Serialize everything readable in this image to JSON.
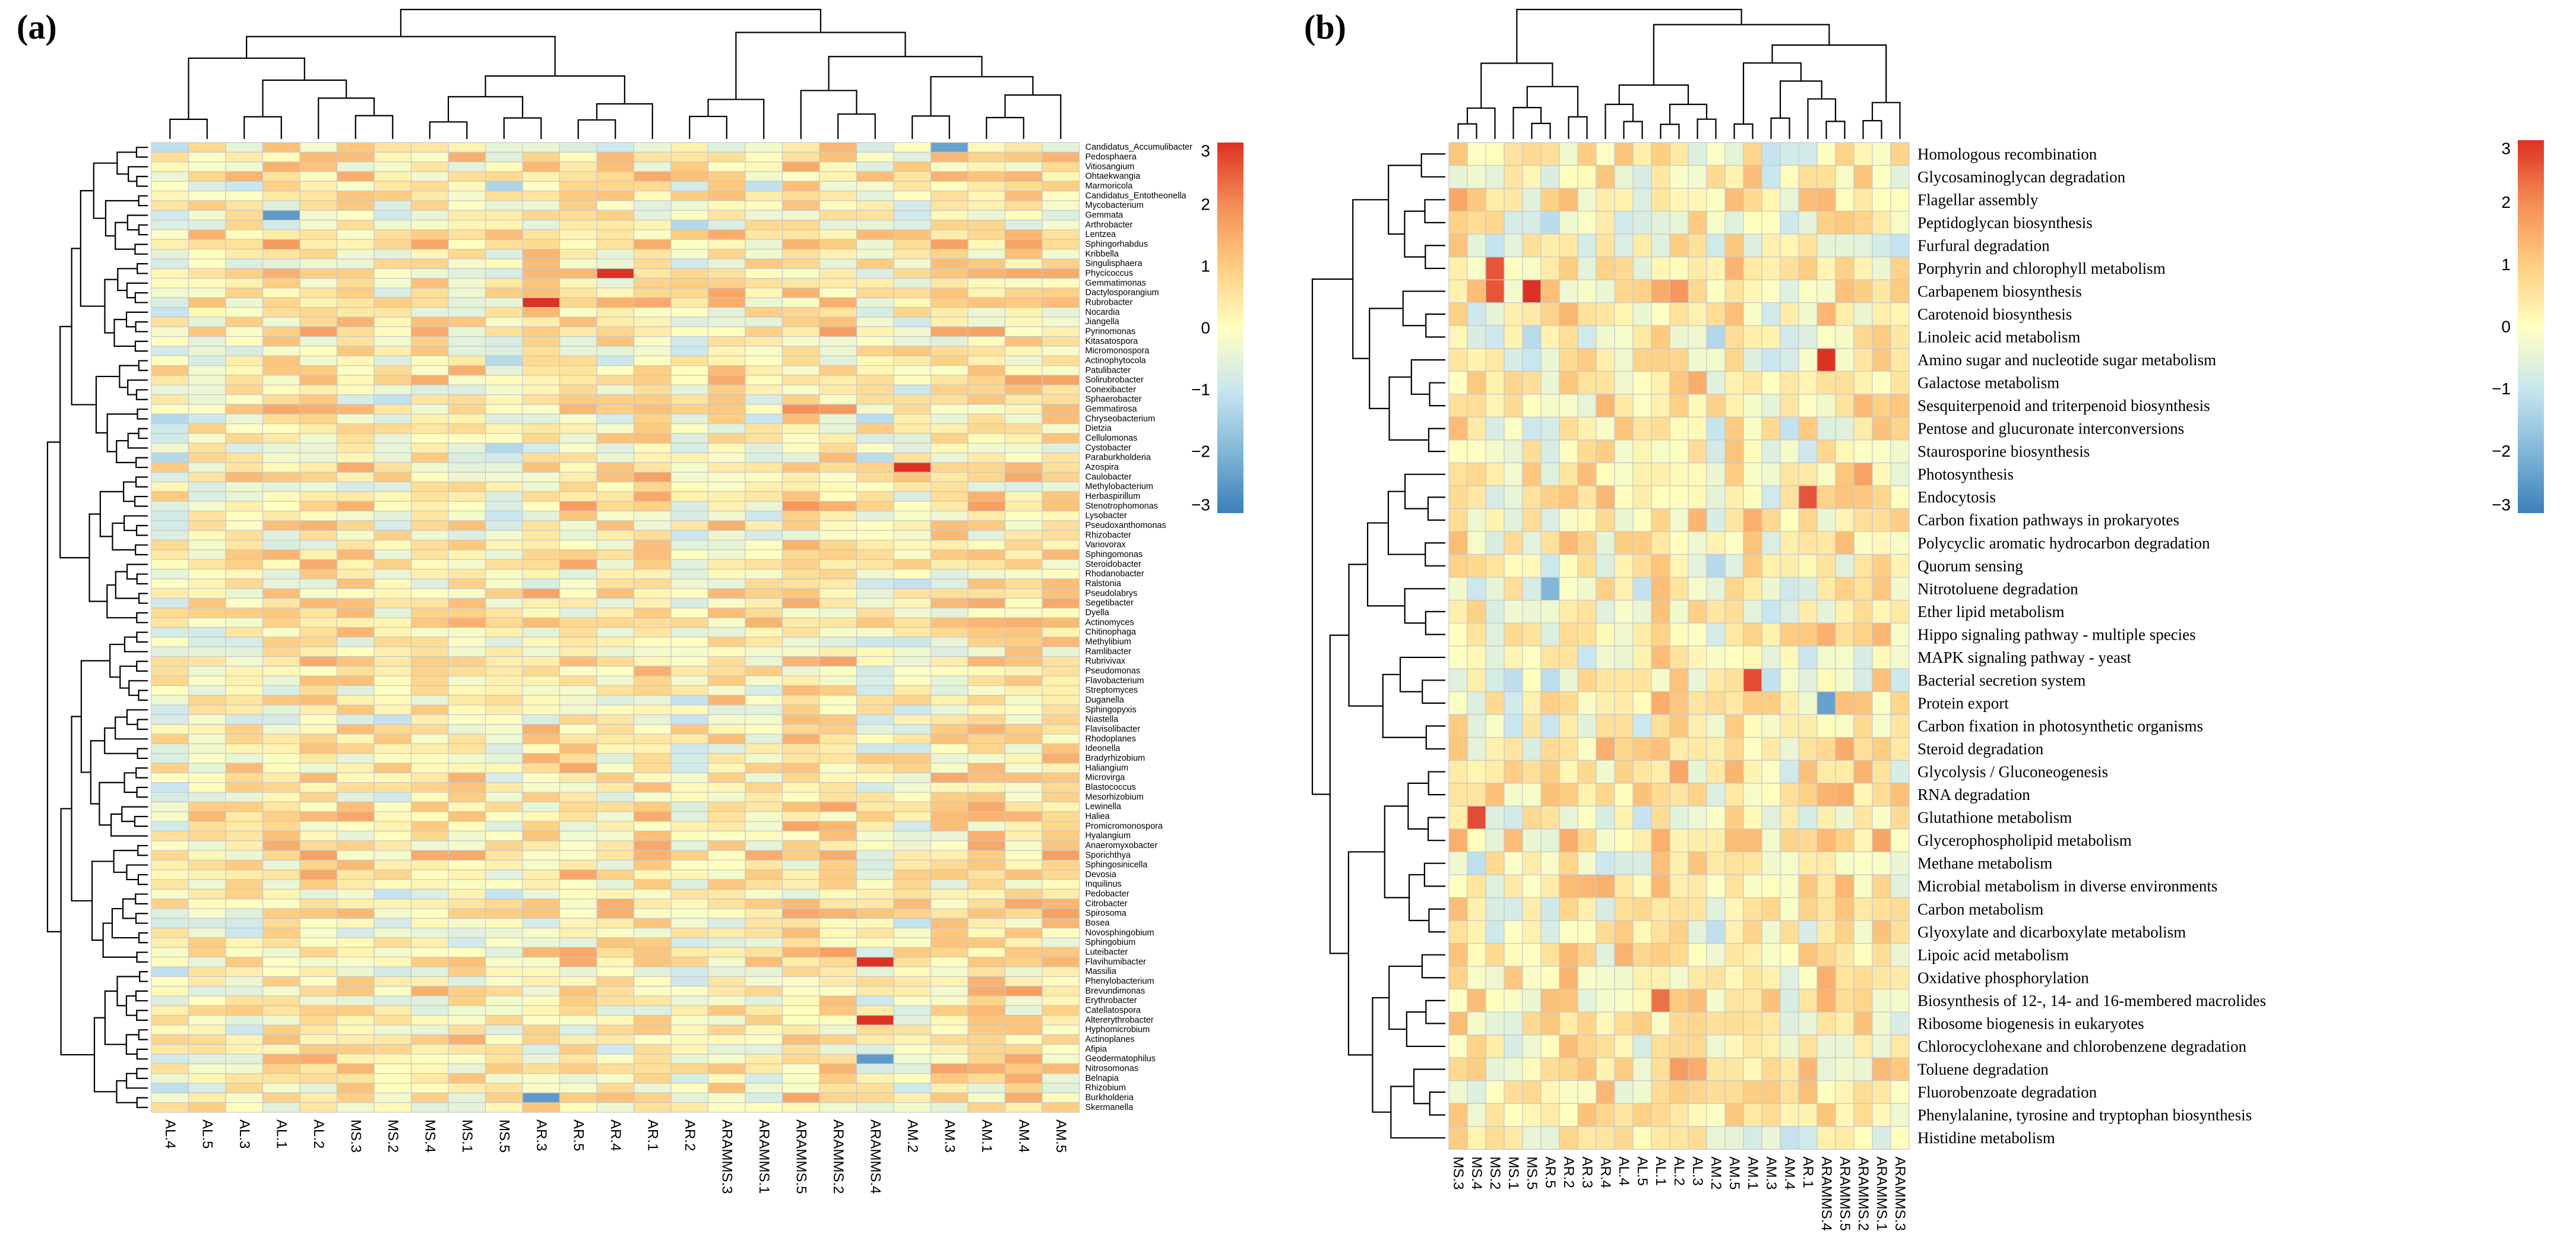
{
  "colors": {
    "palette": [
      "#3C7FB8",
      "#82B7D8",
      "#C9E6F0",
      "#FFFFC0",
      "#FDCD82",
      "#F48C55",
      "#DD3124"
    ],
    "grid": "#C8C8C8",
    "tree": "#000000"
  },
  "chart_data": [
    {
      "type": "heatmap",
      "panel_label": "(a)",
      "title": "",
      "columns": [
        "AL.4",
        "AL.5",
        "AL.3",
        "AL.1",
        "AL.2",
        "MS.3",
        "MS.2",
        "MS.4",
        "MS.1",
        "MS.5",
        "AR.3",
        "AR.5",
        "AR.4",
        "AR.1",
        "AR.2",
        "ARAMMS.3",
        "ARAMMS.1",
        "ARAMMS.5",
        "ARAMMS.2",
        "ARAMMS.4",
        "AM.2",
        "AM.3",
        "AM.1",
        "AM.4",
        "AM.5"
      ],
      "rows": [
        "Candidatus_Accumulibacter",
        "Pedosphaera",
        "Vitiosangium",
        "Ohtaekwangia",
        "Marmoricola",
        "Candidatus_Entotheonella",
        "Mycobacterium",
        "Gemmata",
        "Arthrobacter",
        "Lentzea",
        "Sphingorhabdus",
        "Kribbella",
        "Singulisphaera",
        "Phycicoccus",
        "Gemmatimonas",
        "Dactylosporangium",
        "Rubrobacter",
        "Nocardia",
        "Jiangella",
        "Pyrinomonas",
        "Kitasatospora",
        "Micromonospora",
        "Actinophytocola",
        "Patulibacter",
        "Solirubrobacter",
        "Conexibacter",
        "Sphaerobacter",
        "Gemmatirosa",
        "Chryseobacterium",
        "Dietzia",
        "Cellulomonas",
        "Cystobacter",
        "Paraburkholderia",
        "Azospira",
        "Caulobacter",
        "Methylobacterium",
        "Herbaspirillum",
        "Stenotrophomonas",
        "Lysobacter",
        "Pseudoxanthomonas",
        "Rhizobacter",
        "Variovorax",
        "Sphingomonas",
        "Steroidobacter",
        "Rhodanobacter",
        "Ralstonia",
        "Pseudolabrys",
        "Segetibacter",
        "Dyella",
        "Actinomyces",
        "Chitinophaga",
        "Methylibium",
        "Ramlibacter",
        "Rubrivivax",
        "Pseudomonas",
        "Flavobacterium",
        "Streptomyces",
        "Duganella",
        "Sphingopyxis",
        "Niastella",
        "Flavisolibacter",
        "Rhodoplanes",
        "Ideonella",
        "Bradyrhizobium",
        "Haliangium",
        "Microvirga",
        "Blastococcus",
        "Mesorhizobium",
        "Lewinella",
        "Haliea",
        "Promicromonospora",
        "Hyalangium",
        "Anaeromyxobacter",
        "Sporichthya",
        "Sphingosinicella",
        "Devosia",
        "Inquilinus",
        "Pedobacter",
        "Citrobacter",
        "Spirosoma",
        "Bosea",
        "Novosphingobium",
        "Sphingobium",
        "Luteibacter",
        "Flavihumibacter",
        "Massilia",
        "Phenylobacterium",
        "Brevundimonas",
        "Erythrobacter",
        "Catellatospora",
        "Altererythrobacter",
        "Hyphomicrobium",
        "Actinoplanes",
        "Afipia",
        "Geodermatophilus",
        "Nitrosomonas",
        "Belnapia",
        "Rhizobium",
        "Burkholderia",
        "Skermanella"
      ],
      "colorbar": {
        "min": -3,
        "max": 3,
        "ticks": [
          "3",
          "2",
          "1",
          "0",
          "−1",
          "−2",
          "−3"
        ]
      },
      "highlights": [
        {
          "row": "Candidatus_Accumulibacter",
          "col": "AM.3",
          "value": -2.4
        },
        {
          "row": "Gemmata",
          "col": "AL.1",
          "value": -2.5
        },
        {
          "row": "Phycicoccus",
          "col": "AR.4",
          "value": 3.0
        },
        {
          "row": "Rubrobacter",
          "col": "AR.3",
          "value": 3.0
        },
        {
          "row": "Azospira",
          "col": "AM.2",
          "value": 3.0
        },
        {
          "row": "Flavihumibacter",
          "col": "ARAMMS.4",
          "value": 3.0
        },
        {
          "row": "Altererythrobacter",
          "col": "ARAMMS.4",
          "value": 3.0
        },
        {
          "row": "Geodermatophilus",
          "col": "ARAMMS.4",
          "value": -2.5
        },
        {
          "row": "Burkholderia",
          "col": "AR.3",
          "value": -2.5
        }
      ],
      "seed": 7
    },
    {
      "type": "heatmap",
      "panel_label": "(b)",
      "title": "",
      "columns": [
        "MS.3",
        "MS.4",
        "MS.2",
        "MS.1",
        "MS.5",
        "AR.5",
        "AR.2",
        "AR.3",
        "AR.4",
        "AL.4",
        "AL.5",
        "AL.1",
        "AL.2",
        "AL.3",
        "AM.2",
        "AM.5",
        "AM.1",
        "AM.3",
        "AM.4",
        "AR.1",
        "ARAMMS.4",
        "ARAMMS.5",
        "ARAMMS.2",
        "ARAMMS.1",
        "ARAMMS.3"
      ],
      "rows": [
        "Homologous recombination",
        "Glycosaminoglycan degradation",
        "Flagellar assembly",
        "Peptidoglycan biosynthesis",
        "Furfural degradation",
        "Porphyrin and chlorophyll metabolism",
        "Carbapenem biosynthesis",
        "Carotenoid biosynthesis",
        "Linoleic acid metabolism",
        "Amino sugar and nucleotide sugar metabolism",
        "Galactose metabolism",
        "Sesquiterpenoid and triterpenoid biosynthesis",
        "Pentose and glucuronate interconversions",
        "Staurosporine biosynthesis",
        "Photosynthesis",
        "Endocytosis",
        "Carbon fixation pathways in prokaryotes",
        "Polycyclic aromatic hydrocarbon degradation",
        "Quorum sensing",
        "Nitrotoluene degradation",
        "Ether lipid metabolism",
        "Hippo signaling pathway - multiple species",
        "MAPK signaling pathway - yeast",
        "Bacterial secretion system",
        "Protein export",
        "Carbon fixation in photosynthetic organisms",
        "Steroid degradation",
        "Glycolysis / Gluconeogenesis",
        "RNA degradation",
        "Glutathione metabolism",
        "Glycerophospholipid metabolism",
        "Methane metabolism",
        "Microbial metabolism in diverse environments",
        "Carbon metabolism",
        "Glyoxylate and dicarboxylate metabolism",
        "Lipoic acid metabolism",
        "Oxidative phosphorylation",
        "Biosynthesis of 12-, 14- and 16-membered macrolides",
        "Ribosome biogenesis in eukaryotes",
        "Chlorocyclohexane and chlorobenzene degradation",
        "Toluene degradation",
        "Fluorobenzoate degradation",
        "Phenylalanine, tyrosine and tryptophan biosynthesis",
        "Histidine metabolism"
      ],
      "colorbar": {
        "min": -3,
        "max": 3,
        "ticks": [
          "3",
          "2",
          "1",
          "0",
          "−1",
          "−2",
          "−3"
        ]
      },
      "highlights": [
        {
          "row": "Porphyrin and chlorophyll metabolism",
          "col": "MS.2",
          "value": 2.6
        },
        {
          "row": "Carbapenem biosynthesis",
          "col": "MS.2",
          "value": 2.6
        },
        {
          "row": "Carbapenem biosynthesis",
          "col": "MS.5",
          "value": 3.0
        },
        {
          "row": "Amino sugar and nucleotide sugar metabolism",
          "col": "ARAMMS.4",
          "value": 3.0
        },
        {
          "row": "Endocytosis",
          "col": "AR.1",
          "value": 2.6
        },
        {
          "row": "Bacterial secretion system",
          "col": "AM.1",
          "value": 2.7
        },
        {
          "row": "Protein export",
          "col": "ARAMMS.4",
          "value": -2.4
        },
        {
          "row": "Glutathione metabolism",
          "col": "MS.4",
          "value": 2.7
        },
        {
          "row": "Nitrotoluene degradation",
          "col": "AR.5",
          "value": -2.0
        },
        {
          "row": "Biosynthesis of 12-, 14- and 16-membered macrolides",
          "col": "AL.1",
          "value": 2.3
        }
      ],
      "seed": 13
    }
  ]
}
